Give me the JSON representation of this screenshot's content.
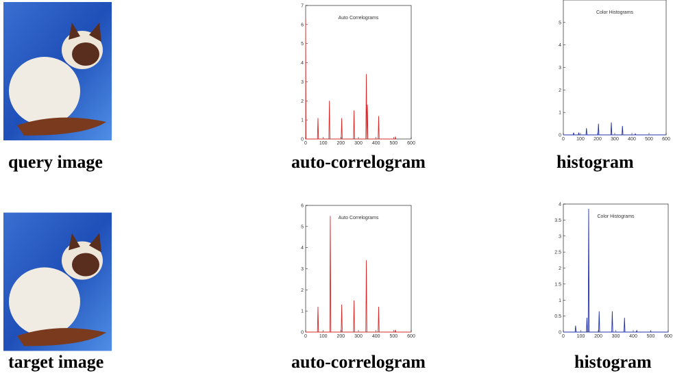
{
  "chart_data": [
    {
      "type": "line",
      "title": "Auto Correlograms",
      "color": "#d62828",
      "x": [
        0,
        2,
        5,
        67,
        70,
        73,
        132,
        135,
        138,
        202,
        205,
        208,
        272,
        275,
        278,
        342,
        345,
        348,
        351,
        354,
        412,
        415,
        418,
        507,
        510,
        513
      ],
      "values": [
        6.3,
        0,
        0,
        0,
        1.1,
        0,
        0,
        2.0,
        0,
        0,
        1.1,
        0,
        0,
        1.5,
        0,
        0,
        3.4,
        0,
        1.8,
        0,
        0,
        1.2,
        0,
        0,
        0.1,
        0
      ],
      "xlim": [
        0,
        600
      ],
      "xticks": [
        0,
        100,
        200,
        300,
        400,
        500,
        600
      ],
      "ylim": [
        0,
        7
      ],
      "yticks": [
        0,
        1,
        2,
        3,
        4,
        5,
        6,
        7
      ]
    },
    {
      "type": "line",
      "title": "Color Histograms",
      "color": "#1f2fa8",
      "x": [
        0,
        57,
        60,
        63,
        87,
        90,
        93,
        132,
        135,
        138,
        202,
        205,
        208,
        277,
        280,
        283,
        342,
        345,
        348,
        417,
        420,
        423,
        600
      ],
      "values": [
        0,
        0,
        0.1,
        0,
        0,
        0.1,
        0,
        0,
        0.3,
        0,
        0,
        0.5,
        0,
        0,
        0.55,
        0,
        0,
        0.4,
        0,
        0,
        0.05,
        0,
        0
      ],
      "xlim": [
        0,
        600
      ],
      "xticks": [
        0,
        100,
        200,
        300,
        400,
        500,
        600
      ],
      "ylim": [
        0,
        6
      ],
      "yticks": [
        0,
        1,
        2,
        3,
        4,
        5
      ]
    },
    {
      "type": "line",
      "title": "Auto Correlograms",
      "color": "#d62828",
      "x": [
        0,
        67,
        70,
        73,
        137,
        140,
        143,
        202,
        205,
        208,
        272,
        275,
        278,
        342,
        345,
        348,
        412,
        415,
        418,
        507,
        510,
        513,
        600
      ],
      "values": [
        0,
        0,
        1.2,
        0,
        0,
        5.5,
        0,
        0,
        1.3,
        0,
        0,
        1.5,
        0,
        0,
        3.4,
        0,
        0,
        1.2,
        0,
        0,
        0.1,
        0,
        0
      ],
      "xlim": [
        0,
        600
      ],
      "xticks": [
        0,
        100,
        200,
        300,
        400,
        500,
        600
      ],
      "ylim": [
        0,
        6
      ],
      "yticks": [
        0,
        1,
        2,
        3,
        4,
        5,
        6
      ]
    },
    {
      "type": "line",
      "title": "Color Histograms",
      "color": "#1f2fa8",
      "x": [
        0,
        67,
        70,
        73,
        132,
        135,
        138,
        142,
        145,
        148,
        202,
        205,
        208,
        277,
        280,
        283,
        347,
        350,
        353,
        417,
        420,
        423,
        497,
        500,
        503,
        600
      ],
      "values": [
        0,
        0,
        0.2,
        0,
        0,
        0.45,
        0,
        0,
        3.85,
        0,
        0,
        0.65,
        0,
        0,
        0.65,
        0,
        0,
        0.45,
        0,
        0,
        0.05,
        0,
        0,
        0.02,
        0,
        0
      ],
      "xlim": [
        0,
        600
      ],
      "xticks": [
        0,
        100,
        200,
        300,
        400,
        500,
        600
      ],
      "ylim": [
        0,
        4
      ],
      "yticks": [
        0,
        0.5,
        1,
        1.5,
        2,
        2.5,
        3,
        3.5,
        4
      ]
    }
  ],
  "captions": [
    "query image",
    "auto-correlogram",
    "histogram",
    "target image",
    "auto-correlogram",
    "histogram"
  ]
}
